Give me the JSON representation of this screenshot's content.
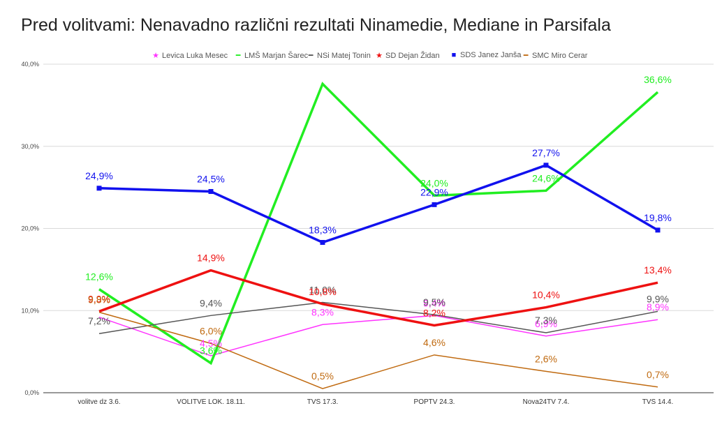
{
  "chart_data": {
    "type": "line",
    "title": "Pred volitvami: Nenavadno različni rezultati Ninamedie, Mediane in Parsifala",
    "xlabel": "",
    "ylabel": "",
    "ylim": [
      0,
      40
    ],
    "yticks": [
      "0,0%",
      "10,0%",
      "20,0%",
      "30,0%",
      "40,0%"
    ],
    "legend_position": "top",
    "grid": true,
    "categories": [
      "volitve dz 3.6.",
      "VOLITVE LOK. 18.11.",
      "TVS 17.3.",
      "POPTV 24.3.",
      "Nova24TV 7.4.",
      "TVS 14.4."
    ],
    "series": [
      {
        "name": "Levica Luka Mesec",
        "color": "#ff33ff",
        "marker": "star",
        "width": 1.5,
        "values": [
          9.2,
          4.5,
          8.3,
          9.4,
          6.9,
          8.9
        ],
        "labels": [
          "",
          "4,5%",
          "8,3%",
          "9,4%",
          "6,9%",
          "8,9%"
        ]
      },
      {
        "name": "LMŠ Marjan Šarec",
        "color": "#21ee21",
        "marker": "line",
        "width": 3.5,
        "values": [
          12.6,
          3.6,
          37.6,
          24.0,
          24.6,
          36.6
        ],
        "labels": [
          "12,6%",
          "3,6%",
          "",
          "24,0%",
          "24,6%",
          "36,6%"
        ]
      },
      {
        "name": "NSi Matej Tonin",
        "color": "#555555",
        "marker": "line",
        "width": 1.5,
        "values": [
          7.2,
          9.4,
          11.0,
          9.5,
          7.3,
          9.9
        ],
        "labels": [
          "7,2%",
          "9,4%",
          "11,0%",
          "9,5%",
          "7,3%",
          "9,9%"
        ]
      },
      {
        "name": "SD Dejan Židan",
        "color": "#ee1111",
        "marker": "star",
        "width": 3.5,
        "values": [
          9.9,
          14.9,
          10.8,
          8.2,
          10.4,
          13.4
        ],
        "labels": [
          "9,9%",
          "14,9%",
          "10,8%",
          "8,2%",
          "10,4%",
          "13,4%"
        ]
      },
      {
        "name": "SDS Janez Janša",
        "color": "#1111ee",
        "marker": "square",
        "width": 3.5,
        "values": [
          24.9,
          24.5,
          18.3,
          22.9,
          27.7,
          19.8
        ],
        "labels": [
          "24,9%",
          "24,5%",
          "18,3%",
          "22,9%",
          "27,7%",
          "19,8%"
        ]
      },
      {
        "name": "SMC Miro Cerar",
        "color": "#c06a10",
        "marker": "line",
        "width": 1.5,
        "values": [
          9.8,
          6.0,
          0.5,
          4.6,
          2.6,
          0.7
        ],
        "labels": [
          "9,8%",
          "6,0%",
          "0,5%",
          "4,6%",
          "2,6%",
          "0,7%"
        ]
      }
    ]
  }
}
